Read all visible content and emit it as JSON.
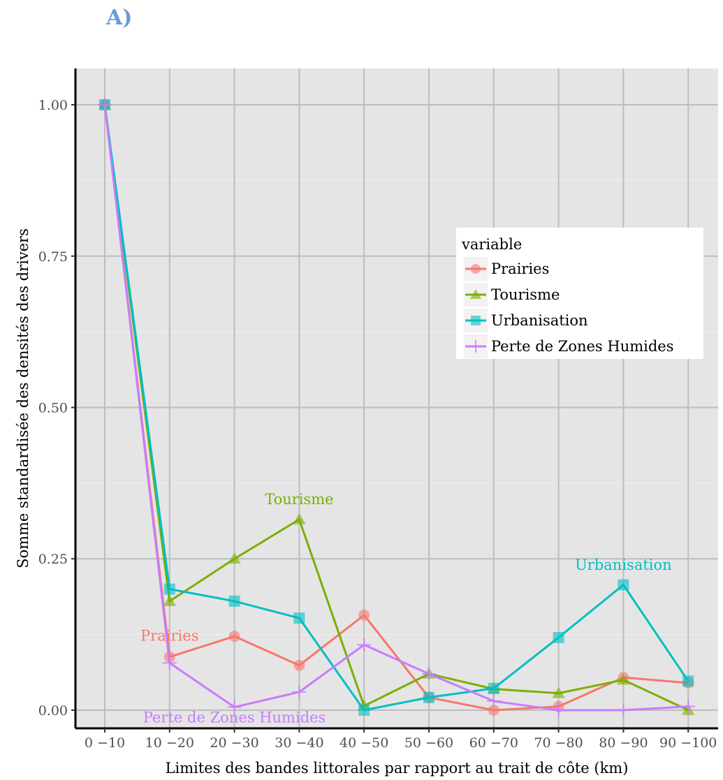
{
  "panel_label": "A)",
  "colors": {
    "Prairies": "#f8766d",
    "Tourisme": "#7cae00",
    "Urbanisation": "#00bfc4",
    "Perte de Zones Humides": "#c77cff"
  },
  "chart_data": {
    "type": "line",
    "xlabel": "Limites des bandes littorales par rapport au trait de côte (km)",
    "ylabel": "Somme standardisée des densités des drivers",
    "categories": [
      "0 −10",
      "10 −20",
      "20 −30",
      "30 −40",
      "40 −50",
      "50 −60",
      "60 −70",
      "70 −80",
      "80 −90",
      "90 −100"
    ],
    "ylim": [
      -0.03,
      1.06
    ],
    "yticks": [
      "0.00",
      "0.25",
      "0.50",
      "0.75",
      "1.00"
    ],
    "grid": true,
    "legend": {
      "title": "variable",
      "position": "right",
      "entries": [
        "Prairies",
        "Tourisme",
        "Urbanisation",
        "Perte de Zones Humides"
      ]
    },
    "series": [
      {
        "name": "Prairies",
        "marker": "circle",
        "values": [
          1.0,
          0.088,
          0.122,
          0.074,
          0.157,
          0.021,
          0.0,
          0.006,
          0.054,
          0.045
        ]
      },
      {
        "name": "Tourisme",
        "marker": "triangle",
        "values": [
          1.0,
          0.18,
          0.25,
          0.315,
          0.007,
          0.06,
          0.035,
          0.028,
          0.05,
          0.0
        ]
      },
      {
        "name": "Urbanisation",
        "marker": "square",
        "values": [
          1.0,
          0.2,
          0.18,
          0.152,
          0.0,
          0.021,
          0.036,
          0.12,
          0.207,
          0.048
        ]
      },
      {
        "name": "Perte de Zones Humides",
        "marker": "plus",
        "values": [
          1.0,
          0.078,
          0.005,
          0.03,
          0.108,
          0.06,
          0.015,
          0.0,
          0.0,
          0.006
        ]
      }
    ],
    "annotations": [
      {
        "text": "Tourisme",
        "series": "Tourisme",
        "x": "30 −40",
        "y": 0.34
      },
      {
        "text": "Prairies",
        "series": "Prairies",
        "x": "10 −20",
        "y": 0.115
      },
      {
        "text": "Urbanisation",
        "series": "Urbanisation",
        "x": "80 −90",
        "y": 0.232
      },
      {
        "text": "Perte de Zones Humides",
        "series": "Perte de Zones Humides",
        "x": "20 −30",
        "y": -0.02
      }
    ]
  }
}
